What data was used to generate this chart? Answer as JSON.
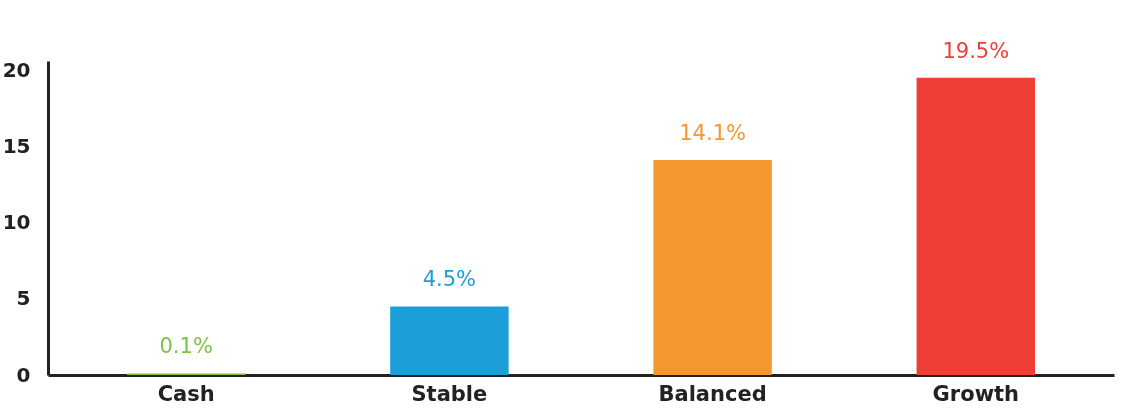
{
  "chart_data": {
    "type": "bar",
    "categories": [
      "Cash",
      "Stable",
      "Balanced",
      "Growth"
    ],
    "values": [
      0.1,
      4.5,
      14.1,
      19.5
    ],
    "colors": [
      "#7dc242",
      "#1a9fd9",
      "#f6962f",
      "#ee3e35"
    ],
    "value_labels": [
      "0.1%",
      "4.5%",
      "14.1%",
      "19.5%"
    ],
    "ylim": [
      0,
      20.6
    ],
    "yticks": [
      0,
      5,
      10,
      15,
      20
    ],
    "grid": false
  }
}
